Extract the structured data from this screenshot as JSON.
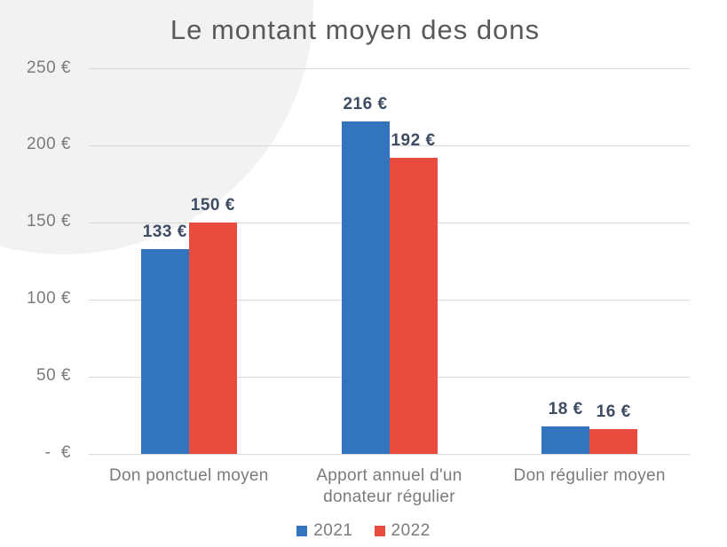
{
  "chart_data": {
    "type": "bar",
    "title": "Le montant moyen des dons",
    "categories": [
      "Don ponctuel moyen",
      "Apport annuel d'un donateur régulier",
      "Don régulier moyen"
    ],
    "series": [
      {
        "name": "2021",
        "color": "#3274bd",
        "values": [
          133,
          216,
          18
        ],
        "value_labels": [
          "133 €",
          "216 €",
          "18 €"
        ]
      },
      {
        "name": "2022",
        "color": "#e74c3e",
        "values": [
          150,
          192,
          16
        ],
        "value_labels": [
          "150 €",
          "192 €",
          "16 €"
        ]
      }
    ],
    "y_axis": {
      "min": 0,
      "max": 250,
      "ticks": [
        250,
        200,
        150,
        100,
        50,
        0
      ],
      "tick_labels": [
        "250 €",
        "200 €",
        "150 €",
        "100 €",
        "50 €",
        "-  €"
      ]
    },
    "grid": true,
    "legend_position": "bottom",
    "xlabel": "",
    "ylabel": ""
  },
  "style_colors": {
    "bar_2021": "#3274bd",
    "bar_2022": "#e74c3e",
    "title_text": "#595959",
    "axis_text": "#7b7b7b",
    "value_label_text": "#3e4d63",
    "gridline": "#d9d9d9",
    "background_circle": "#f2f2f2",
    "background": "#ffffff"
  }
}
